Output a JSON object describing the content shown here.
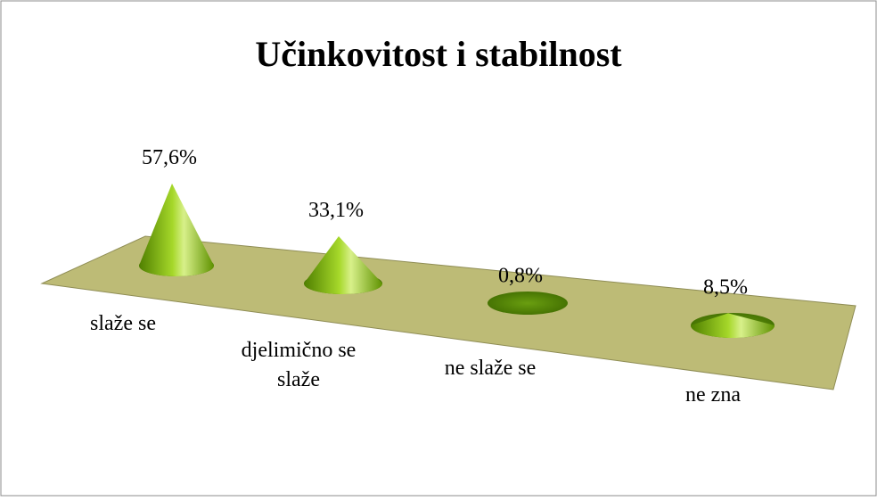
{
  "chart_data": {
    "type": "cone",
    "title": "Učinkovitost i stabilnost",
    "categories": [
      "slaže se",
      "djelimično se slaže",
      "ne slaže se",
      "ne zna"
    ],
    "values": [
      57.6,
      33.1,
      0.8,
      8.5
    ],
    "value_labels": [
      "57,6%",
      "33,1%",
      "0,8%",
      "8,5%"
    ],
    "color": "#7fb800"
  }
}
